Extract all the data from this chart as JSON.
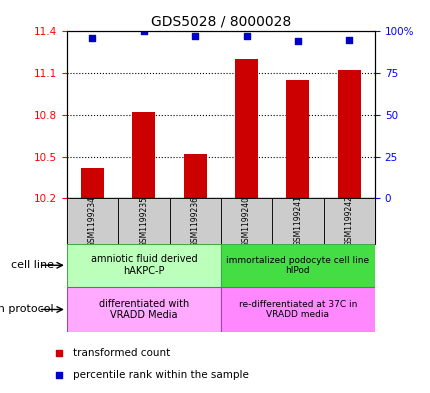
{
  "title": "GDS5028 / 8000028",
  "samples": [
    "GSM1199234",
    "GSM1199235",
    "GSM1199236",
    "GSM1199240",
    "GSM1199241",
    "GSM1199242"
  ],
  "bar_values": [
    10.42,
    10.82,
    10.52,
    11.2,
    11.05,
    11.12
  ],
  "scatter_values": [
    96,
    100,
    97,
    97,
    94,
    95
  ],
  "ylim_left": [
    10.2,
    11.4
  ],
  "ylim_right": [
    0,
    100
  ],
  "yticks_left": [
    10.2,
    10.5,
    10.8,
    11.1,
    11.4
  ],
  "ytick_labels_left": [
    "10.2",
    "10.5",
    "10.8",
    "11.1",
    "11.4"
  ],
  "yticks_right": [
    0,
    25,
    50,
    75,
    100
  ],
  "ytick_labels_right": [
    "0",
    "25",
    "50",
    "75",
    "100%"
  ],
  "bar_color": "#cc0000",
  "scatter_color": "#0000cc",
  "bar_bottom": 10.2,
  "cell_line_labels": [
    "amniotic fluid derived\nhAKPC-P",
    "immortalized podocyte cell line\nhIPod"
  ],
  "cell_line_color1": "#bbffbb",
  "cell_line_color2": "#44dd44",
  "growth_protocol_labels": [
    "differentiated with\nVRADD Media",
    "re-differentiated at 37C in\nVRADD media"
  ],
  "growth_protocol_color1": "#ffaaff",
  "growth_protocol_color2": "#ff88ff",
  "legend_items": [
    "transformed count",
    "percentile rank within the sample"
  ],
  "legend_colors": [
    "#cc0000",
    "#0000cc"
  ],
  "cell_line_label": "cell line",
  "growth_protocol_label": "growth protocol"
}
